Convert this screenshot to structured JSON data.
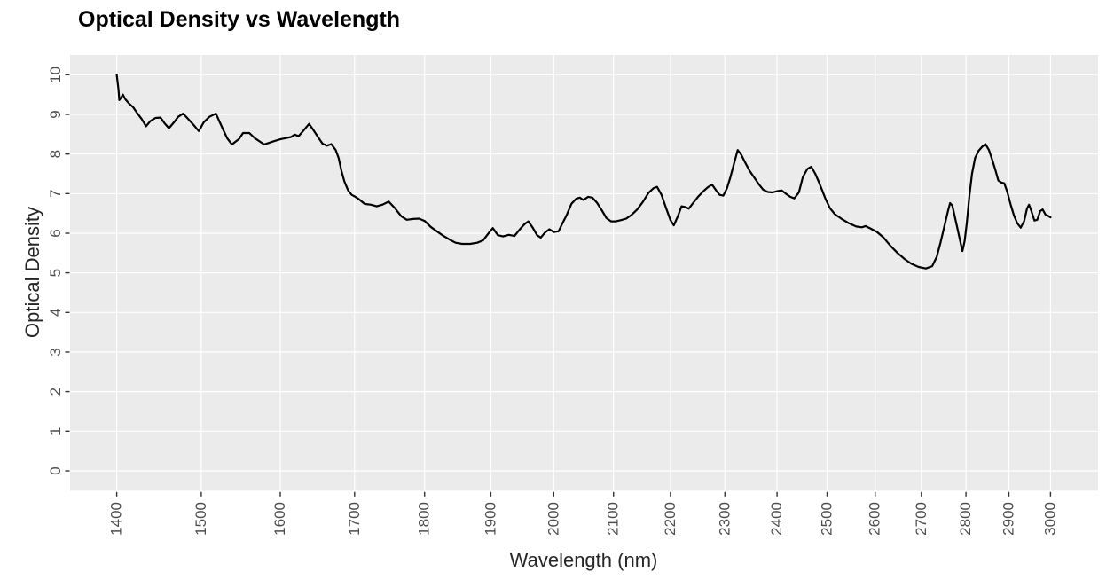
{
  "page": {
    "background": "#ffffff"
  },
  "chart_data": {
    "type": "line",
    "title": "Optical Density vs Wavelength",
    "xlabel": "Wavelength (nm)",
    "ylabel": "Optical Density",
    "x_scale": "log10",
    "xlim": [
      1347.7,
      3118.8
    ],
    "ylim": [
      -0.5,
      10.5
    ],
    "x_ticks": [
      1400,
      1500,
      1600,
      1700,
      1800,
      1900,
      2000,
      2100,
      2200,
      2300,
      2400,
      2500,
      2600,
      2700,
      2800,
      2900,
      3000
    ],
    "y_ticks": [
      0,
      1,
      2,
      3,
      4,
      5,
      6,
      7,
      8,
      9,
      10
    ],
    "grid": "major",
    "legend_position": "none",
    "panel_background": "#ebebeb",
    "gridline_color": "#ffffff",
    "tick_mark_color": "#333333",
    "tick_label_color": "#4d4d4d",
    "axis_title_color": "#262626",
    "title_color": "#000000",
    "series": [
      {
        "name": "Optical Density",
        "color": "#000000",
        "stroke_width": 2.2,
        "points": [
          [
            1400,
            10.0
          ],
          [
            1402,
            9.62
          ],
          [
            1403,
            9.36
          ],
          [
            1405,
            9.42
          ],
          [
            1407,
            9.5
          ],
          [
            1410,
            9.38
          ],
          [
            1414,
            9.28
          ],
          [
            1419,
            9.18
          ],
          [
            1424,
            9.02
          ],
          [
            1429,
            8.88
          ],
          [
            1434,
            8.7
          ],
          [
            1439,
            8.83
          ],
          [
            1445,
            8.91
          ],
          [
            1451,
            8.92
          ],
          [
            1456,
            8.77
          ],
          [
            1461,
            8.65
          ],
          [
            1467,
            8.8
          ],
          [
            1472,
            8.94
          ],
          [
            1478,
            9.02
          ],
          [
            1483,
            8.91
          ],
          [
            1490,
            8.75
          ],
          [
            1497,
            8.58
          ],
          [
            1503,
            8.8
          ],
          [
            1510,
            8.94
          ],
          [
            1518,
            9.02
          ],
          [
            1527,
            8.62
          ],
          [
            1532,
            8.4
          ],
          [
            1538,
            8.24
          ],
          [
            1547,
            8.38
          ],
          [
            1552,
            8.53
          ],
          [
            1560,
            8.53
          ],
          [
            1567,
            8.4
          ],
          [
            1579,
            8.24
          ],
          [
            1591,
            8.32
          ],
          [
            1600,
            8.37
          ],
          [
            1614,
            8.43
          ],
          [
            1619,
            8.49
          ],
          [
            1624,
            8.45
          ],
          [
            1630,
            8.58
          ],
          [
            1638,
            8.76
          ],
          [
            1644,
            8.6
          ],
          [
            1650,
            8.43
          ],
          [
            1656,
            8.26
          ],
          [
            1662,
            8.21
          ],
          [
            1668,
            8.25
          ],
          [
            1674,
            8.1
          ],
          [
            1678,
            7.9
          ],
          [
            1682,
            7.56
          ],
          [
            1686,
            7.3
          ],
          [
            1691,
            7.08
          ],
          [
            1696,
            6.97
          ],
          [
            1701,
            6.92
          ],
          [
            1706,
            6.86
          ],
          [
            1714,
            6.74
          ],
          [
            1723,
            6.72
          ],
          [
            1731,
            6.68
          ],
          [
            1739,
            6.72
          ],
          [
            1748,
            6.8
          ],
          [
            1757,
            6.63
          ],
          [
            1766,
            6.43
          ],
          [
            1774,
            6.34
          ],
          [
            1783,
            6.36
          ],
          [
            1792,
            6.37
          ],
          [
            1800,
            6.31
          ],
          [
            1809,
            6.16
          ],
          [
            1818,
            6.05
          ],
          [
            1828,
            5.93
          ],
          [
            1837,
            5.84
          ],
          [
            1846,
            5.76
          ],
          [
            1856,
            5.73
          ],
          [
            1868,
            5.73
          ],
          [
            1879,
            5.76
          ],
          [
            1888,
            5.82
          ],
          [
            1896,
            5.99
          ],
          [
            1903,
            6.13
          ],
          [
            1911,
            5.95
          ],
          [
            1919,
            5.92
          ],
          [
            1928,
            5.96
          ],
          [
            1937,
            5.93
          ],
          [
            1946,
            6.11
          ],
          [
            1953,
            6.23
          ],
          [
            1959,
            6.3
          ],
          [
            1966,
            6.14
          ],
          [
            1973,
            5.95
          ],
          [
            1979,
            5.89
          ],
          [
            1986,
            6.02
          ],
          [
            1993,
            6.1
          ],
          [
            2000,
            6.03
          ],
          [
            2008,
            6.05
          ],
          [
            2014,
            6.24
          ],
          [
            2021,
            6.45
          ],
          [
            2029,
            6.74
          ],
          [
            2037,
            6.87
          ],
          [
            2043,
            6.9
          ],
          [
            2049,
            6.84
          ],
          [
            2057,
            6.92
          ],
          [
            2064,
            6.9
          ],
          [
            2072,
            6.77
          ],
          [
            2080,
            6.58
          ],
          [
            2088,
            6.38
          ],
          [
            2096,
            6.3
          ],
          [
            2104,
            6.3
          ],
          [
            2113,
            6.33
          ],
          [
            2122,
            6.37
          ],
          [
            2131,
            6.46
          ],
          [
            2141,
            6.6
          ],
          [
            2151,
            6.79
          ],
          [
            2161,
            7.02
          ],
          [
            2170,
            7.14
          ],
          [
            2176,
            7.17
          ],
          [
            2184,
            6.97
          ],
          [
            2192,
            6.64
          ],
          [
            2200,
            6.33
          ],
          [
            2206,
            6.2
          ],
          [
            2213,
            6.42
          ],
          [
            2220,
            6.68
          ],
          [
            2227,
            6.66
          ],
          [
            2233,
            6.62
          ],
          [
            2241,
            6.76
          ],
          [
            2250,
            6.92
          ],
          [
            2259,
            7.05
          ],
          [
            2268,
            7.16
          ],
          [
            2276,
            7.23
          ],
          [
            2283,
            7.09
          ],
          [
            2290,
            6.97
          ],
          [
            2297,
            6.95
          ],
          [
            2304,
            7.14
          ],
          [
            2310,
            7.4
          ],
          [
            2317,
            7.75
          ],
          [
            2324,
            8.1
          ],
          [
            2331,
            7.98
          ],
          [
            2338,
            7.79
          ],
          [
            2347,
            7.57
          ],
          [
            2356,
            7.4
          ],
          [
            2365,
            7.23
          ],
          [
            2373,
            7.1
          ],
          [
            2382,
            7.04
          ],
          [
            2391,
            7.03
          ],
          [
            2400,
            7.06
          ],
          [
            2409,
            7.08
          ],
          [
            2417,
            7.0
          ],
          [
            2426,
            6.92
          ],
          [
            2434,
            6.88
          ],
          [
            2443,
            7.03
          ],
          [
            2451,
            7.42
          ],
          [
            2460,
            7.62
          ],
          [
            2468,
            7.68
          ],
          [
            2476,
            7.5
          ],
          [
            2483,
            7.3
          ],
          [
            2490,
            7.08
          ],
          [
            2497,
            6.86
          ],
          [
            2506,
            6.63
          ],
          [
            2516,
            6.48
          ],
          [
            2530,
            6.36
          ],
          [
            2545,
            6.25
          ],
          [
            2560,
            6.17
          ],
          [
            2572,
            6.15
          ],
          [
            2580,
            6.18
          ],
          [
            2590,
            6.12
          ],
          [
            2604,
            6.03
          ],
          [
            2618,
            5.89
          ],
          [
            2633,
            5.68
          ],
          [
            2648,
            5.5
          ],
          [
            2663,
            5.35
          ],
          [
            2678,
            5.23
          ],
          [
            2694,
            5.15
          ],
          [
            2710,
            5.11
          ],
          [
            2724,
            5.17
          ],
          [
            2734,
            5.4
          ],
          [
            2743,
            5.78
          ],
          [
            2752,
            6.22
          ],
          [
            2759,
            6.55
          ],
          [
            2764,
            6.76
          ],
          [
            2769,
            6.7
          ],
          [
            2774,
            6.45
          ],
          [
            2780,
            6.15
          ],
          [
            2786,
            5.85
          ],
          [
            2792,
            5.55
          ],
          [
            2797,
            5.8
          ],
          [
            2802,
            6.25
          ],
          [
            2808,
            6.95
          ],
          [
            2814,
            7.5
          ],
          [
            2821,
            7.9
          ],
          [
            2829,
            8.08
          ],
          [
            2837,
            8.18
          ],
          [
            2845,
            8.25
          ],
          [
            2853,
            8.1
          ],
          [
            2861,
            7.85
          ],
          [
            2868,
            7.6
          ],
          [
            2875,
            7.33
          ],
          [
            2882,
            7.28
          ],
          [
            2889,
            7.26
          ],
          [
            2896,
            7.05
          ],
          [
            2904,
            6.73
          ],
          [
            2912,
            6.45
          ],
          [
            2920,
            6.25
          ],
          [
            2928,
            6.14
          ],
          [
            2936,
            6.3
          ],
          [
            2943,
            6.62
          ],
          [
            2948,
            6.72
          ],
          [
            2954,
            6.55
          ],
          [
            2961,
            6.32
          ],
          [
            2968,
            6.34
          ],
          [
            2975,
            6.56
          ],
          [
            2981,
            6.6
          ],
          [
            2988,
            6.47
          ],
          [
            2994,
            6.44
          ],
          [
            3000,
            6.4
          ]
        ]
      }
    ]
  }
}
